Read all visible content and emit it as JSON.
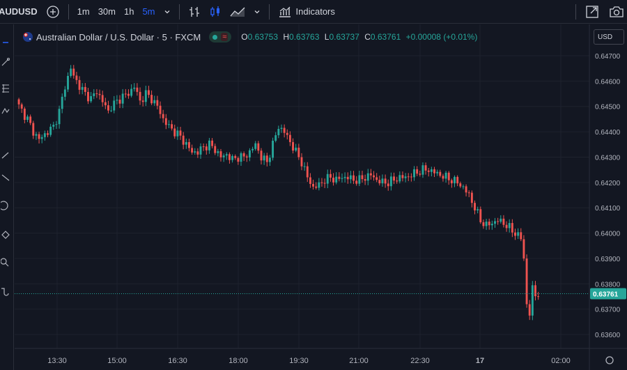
{
  "toolbar": {
    "symbol": "AUDUSD",
    "intervals": [
      "1m",
      "30m",
      "1h",
      "5m"
    ],
    "active_interval": "5m",
    "indicators_label": "Indicators"
  },
  "legend": {
    "title": "Australian Dollar / U.S. Dollar · 5 · FXCM",
    "wave": "≈",
    "o_label": "O",
    "o_value": "0.63753",
    "h_label": "H",
    "h_value": "0.63763",
    "l_label": "L",
    "l_value": "0.63737",
    "c_label": "C",
    "c_value": "0.63761",
    "change": "+0.00008 (+0.01%)"
  },
  "currency_label": "USD",
  "colors": {
    "up": "#26a69a",
    "down": "#ef5350",
    "background": "#131722",
    "grid": "#1e222d",
    "accent": "#2962ff"
  },
  "chart_data": {
    "type": "candlestick",
    "y_ticks": [
      "0.64700",
      "0.64600",
      "0.64500",
      "0.64400",
      "0.64300",
      "0.64200",
      "0.64100",
      "0.64000",
      "0.63900",
      "0.63800",
      "0.63700",
      "0.63600"
    ],
    "x_ticks": [
      "13:30",
      "15:00",
      "16:30",
      "18:00",
      "19:30",
      "21:00",
      "22:30",
      "17",
      "02:00"
    ],
    "ylim": [
      0.6358,
      0.6472
    ],
    "last_price": "0.63761",
    "close_path": [
      [
        0,
        0.645
      ],
      [
        3,
        0.6445
      ],
      [
        5,
        0.644
      ],
      [
        7,
        0.6437
      ],
      [
        10,
        0.644
      ],
      [
        12,
        0.6442
      ],
      [
        14,
        0.6448
      ],
      [
        16,
        0.6458
      ],
      [
        18,
        0.6465
      ],
      [
        19,
        0.6462
      ],
      [
        21,
        0.6458
      ],
      [
        23,
        0.6455
      ],
      [
        25,
        0.6453
      ],
      [
        27,
        0.6456
      ],
      [
        29,
        0.6452
      ],
      [
        31,
        0.6448
      ],
      [
        32,
        0.645
      ],
      [
        34,
        0.6452
      ],
      [
        36,
        0.6454
      ],
      [
        38,
        0.6455
      ],
      [
        40,
        0.6458
      ],
      [
        42,
        0.6452
      ],
      [
        44,
        0.6455
      ],
      [
        46,
        0.6453
      ],
      [
        48,
        0.645
      ],
      [
        50,
        0.6445
      ],
      [
        52,
        0.6442
      ],
      [
        54,
        0.644
      ],
      [
        56,
        0.6438
      ],
      [
        58,
        0.6435
      ],
      [
        60,
        0.6432
      ],
      [
        62,
        0.6432
      ],
      [
        64,
        0.6434
      ],
      [
        66,
        0.6435
      ],
      [
        68,
        0.6433
      ],
      [
        70,
        0.643
      ],
      [
        72,
        0.6431
      ],
      [
        74,
        0.6429
      ],
      [
        76,
        0.643
      ],
      [
        78,
        0.643
      ],
      [
        80,
        0.6432
      ],
      [
        82,
        0.6435
      ],
      [
        84,
        0.643
      ],
      [
        86,
        0.6428
      ],
      [
        88,
        0.6435
      ],
      [
        90,
        0.6442
      ],
      [
        92,
        0.644
      ],
      [
        94,
        0.6436
      ],
      [
        96,
        0.6432
      ],
      [
        98,
        0.6428
      ],
      [
        100,
        0.6422
      ],
      [
        102,
        0.6418
      ],
      [
        104,
        0.6419
      ],
      [
        106,
        0.6421
      ],
      [
        108,
        0.6422
      ],
      [
        110,
        0.6421
      ],
      [
        112,
        0.6422
      ],
      [
        114,
        0.6422
      ],
      [
        116,
        0.6421
      ],
      [
        118,
        0.6421
      ],
      [
        120,
        0.6422
      ],
      [
        122,
        0.6423
      ],
      [
        124,
        0.6421
      ],
      [
        126,
        0.642
      ],
      [
        128,
        0.642
      ],
      [
        130,
        0.6421
      ],
      [
        132,
        0.6422
      ],
      [
        134,
        0.6422
      ],
      [
        136,
        0.6423
      ],
      [
        138,
        0.6424
      ],
      [
        140,
        0.6425
      ],
      [
        142,
        0.6425
      ],
      [
        144,
        0.6424
      ],
      [
        146,
        0.6423
      ],
      [
        148,
        0.6422
      ],
      [
        150,
        0.6421
      ],
      [
        152,
        0.642
      ],
      [
        154,
        0.6418
      ],
      [
        156,
        0.6415
      ],
      [
        158,
        0.641
      ],
      [
        160,
        0.6405
      ],
      [
        162,
        0.6403
      ],
      [
        164,
        0.6404
      ],
      [
        166,
        0.6405
      ],
      [
        168,
        0.6404
      ],
      [
        170,
        0.6402
      ],
      [
        172,
        0.64
      ],
      [
        174,
        0.6398
      ],
      [
        175,
        0.639
      ],
      [
        176,
        0.6372
      ],
      [
        177,
        0.6368
      ],
      [
        178,
        0.6378
      ],
      [
        179,
        0.6376
      ],
      [
        180,
        0.6376
      ]
    ]
  }
}
